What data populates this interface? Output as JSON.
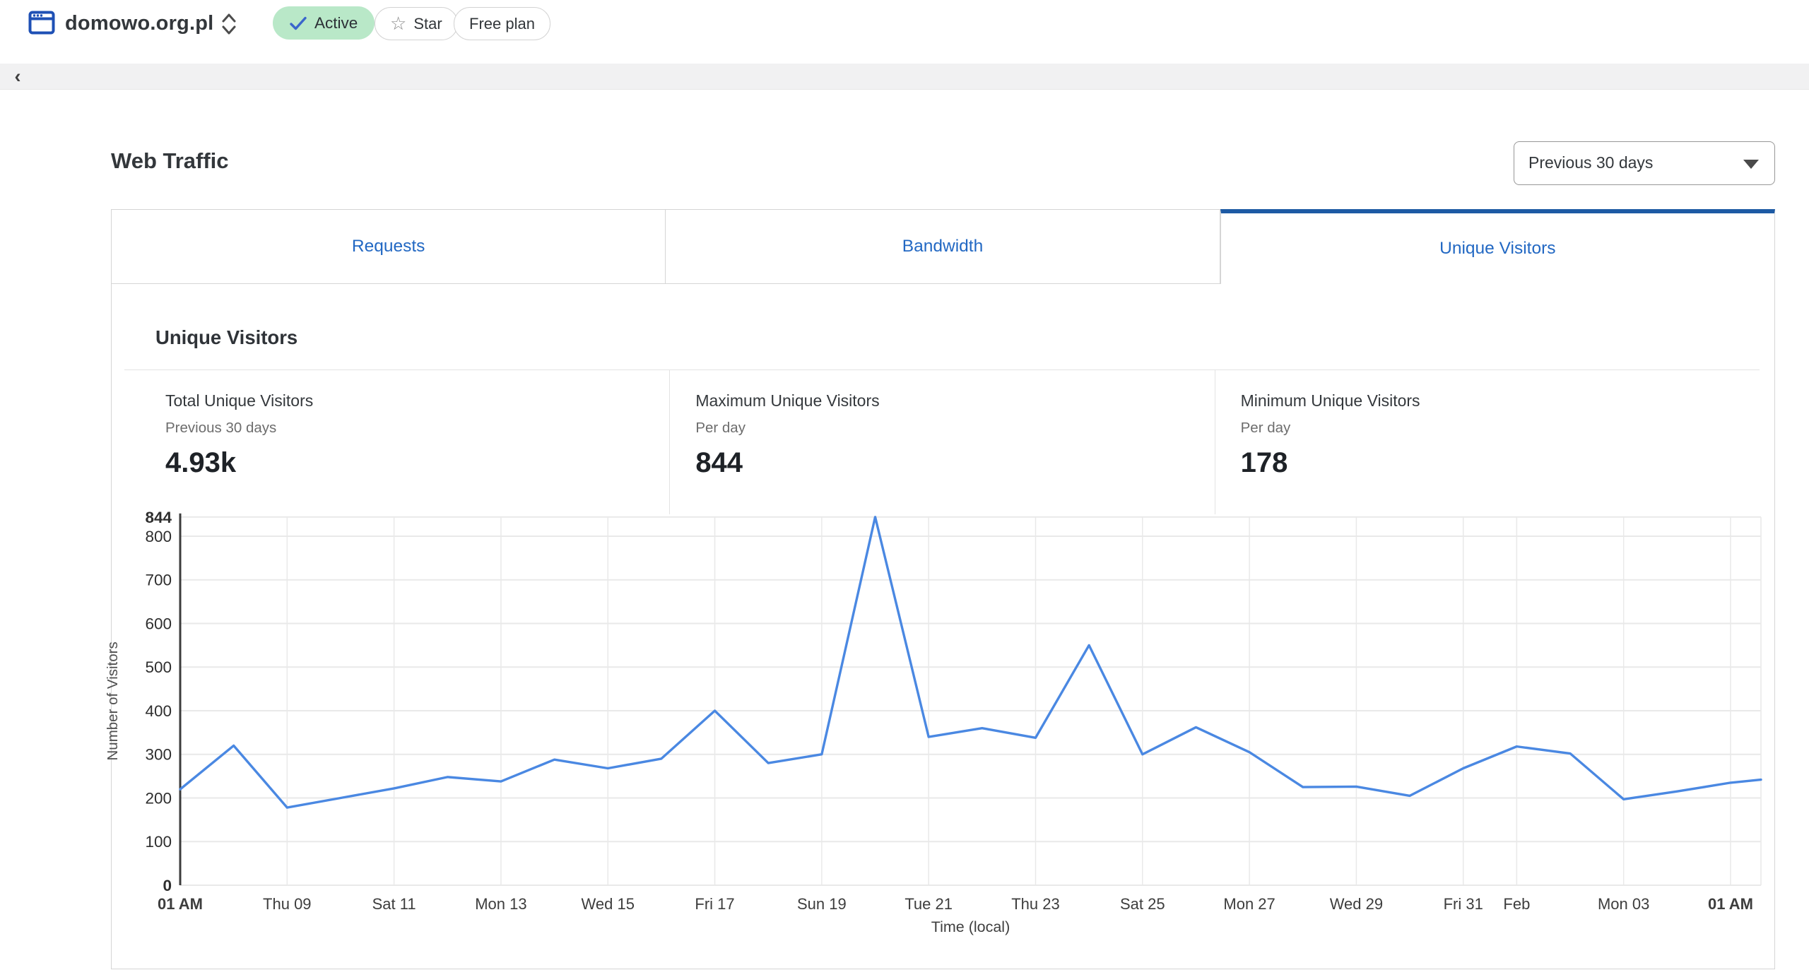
{
  "topbar": {
    "domain": "domowo.org.pl",
    "active_badge": {
      "label": "Active"
    },
    "star_button": {
      "label": "Star",
      "glyph": "☆"
    },
    "plan_badge": {
      "label": "Free plan"
    }
  },
  "nav_strip": {
    "collapse_glyph": "‹"
  },
  "page_header": {
    "title": "Web Traffic"
  },
  "range_dropdown": {
    "value": "Previous 30 days"
  },
  "tabs": [
    {
      "label": "Requests",
      "active": false
    },
    {
      "label": "Bandwidth",
      "active": false
    },
    {
      "label": "Unique Visitors",
      "active": true
    }
  ],
  "section": {
    "heading": "Unique Visitors"
  },
  "stats": [
    {
      "title": "Total Unique Visitors",
      "subtitle": "Previous 30 days",
      "value": "4.93k"
    },
    {
      "title": "Maximum Unique Visitors",
      "subtitle": "Per day",
      "value": "844"
    },
    {
      "title": "Minimum Unique Visitors",
      "subtitle": "Per day",
      "value": "178"
    }
  ],
  "chart_data": {
    "type": "line",
    "title": "Unique Visitors",
    "xlabel": "Time (local)",
    "ylabel": "Number of Visitors",
    "ylim": [
      0,
      844
    ],
    "yticks": [
      0,
      100,
      200,
      300,
      400,
      500,
      600,
      700,
      800,
      844
    ],
    "bold_yticks": [
      0,
      844
    ],
    "x_tick_labels": [
      "01 AM",
      "Thu 09",
      "Sat 11",
      "Mon 13",
      "Wed 15",
      "Fri 17",
      "Sun 19",
      "Tue 21",
      "Thu 23",
      "Sat 25",
      "Mon 27",
      "Wed 29",
      "Fri 31",
      "Feb",
      "Mon 03",
      "01 AM"
    ],
    "x_tick_indices": [
      0,
      2,
      4,
      6,
      8,
      10,
      12,
      14,
      16,
      18,
      20,
      22,
      24,
      25,
      27,
      29
    ],
    "values": [
      220,
      320,
      178,
      200,
      222,
      248,
      238,
      288,
      268,
      290,
      400,
      280,
      300,
      844,
      340,
      360,
      338,
      550,
      300,
      362,
      305,
      225,
      226,
      205,
      268,
      318,
      302,
      197,
      215,
      235
    ],
    "edge_value": 242,
    "grid": true,
    "legend_position": "none",
    "line_color": "#4a88e2"
  },
  "colors": {
    "tab_link_blue": "#2268c3",
    "active_tab_bar": "#1d5aa4",
    "badge_green_bg": "#b9e8c8",
    "check_blue": "#3a66cc",
    "site_icon_blue": "#1e50b5",
    "grid_gray": "#e9e9e9",
    "axis_dark": "#3c3c3c"
  }
}
